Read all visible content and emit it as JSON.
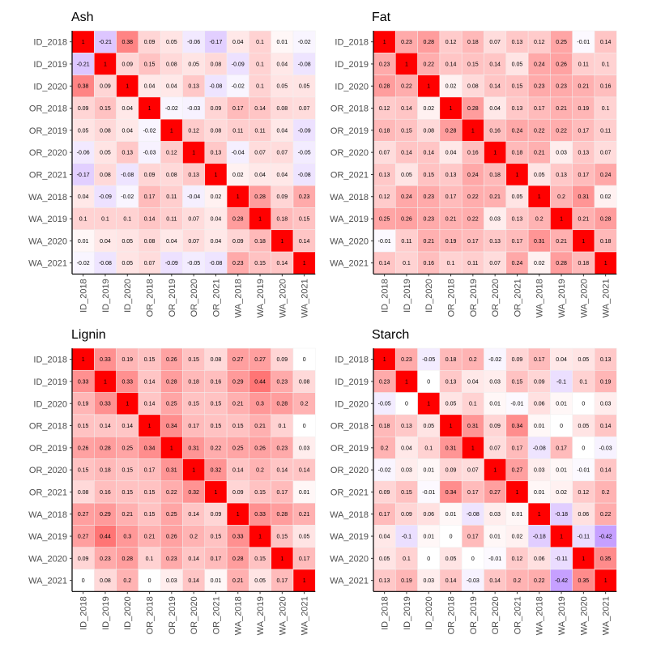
{
  "chart_data": [
    {
      "type": "heatmap",
      "title": "Ash",
      "x_categories": [
        "ID_2018",
        "ID_2019",
        "ID_2020",
        "OR_2018",
        "OR_2019",
        "OR_2020",
        "OR_2021",
        "WA_2018",
        "WA_2019",
        "WA_2020",
        "WA_2021"
      ],
      "y_categories": [
        "ID_2018",
        "ID_2019",
        "ID_2020",
        "OR_2018",
        "OR_2019",
        "OR_2020",
        "OR_2021",
        "WA_2018",
        "WA_2019",
        "WA_2020",
        "WA_2021"
      ],
      "values": [
        [
          "1",
          "-0.21",
          "0.38",
          "0.09",
          "0.05",
          "-0.06",
          "-0.17",
          "0.04",
          "0.1",
          "0.01",
          "-0.02"
        ],
        [
          "-0.21",
          "1",
          "0.09",
          "0.15",
          "0.08",
          "0.05",
          "0.08",
          "-0.09",
          "0.1",
          "0.04",
          "-0.08"
        ],
        [
          "0.38",
          "0.09",
          "1",
          "0.04",
          "0.04",
          "0.13",
          "-0.08",
          "-0.02",
          "0.1",
          "0.05",
          "0.05"
        ],
        [
          "0.09",
          "0.15",
          "0.04",
          "1",
          "-0.02",
          "-0.03",
          "0.09",
          "0.17",
          "0.14",
          "0.08",
          "0.07"
        ],
        [
          "0.05",
          "0.08",
          "0.04",
          "-0.02",
          "1",
          "0.12",
          "0.08",
          "0.11",
          "0.11",
          "0.04",
          "-0.09"
        ],
        [
          "-0.06",
          "0.05",
          "0.13",
          "-0.03",
          "0.12",
          "1",
          "0.13",
          "-0.04",
          "0.07",
          "0.07",
          "-0.05"
        ],
        [
          "-0.17",
          "0.08",
          "-0.08",
          "0.09",
          "0.08",
          "0.13",
          "1",
          "0.02",
          "0.04",
          "0.04",
          "-0.08"
        ],
        [
          "0.04",
          "-0.09",
          "-0.02",
          "0.17",
          "0.11",
          "-0.04",
          "0.02",
          "1",
          "0.28",
          "0.09",
          "0.23"
        ],
        [
          "0.1",
          "0.1",
          "0.1",
          "0.14",
          "0.11",
          "0.07",
          "0.04",
          "0.28",
          "1",
          "0.18",
          "0.15"
        ],
        [
          "0.01",
          "0.04",
          "0.05",
          "0.08",
          "0.04",
          "0.07",
          "0.04",
          "0.09",
          "0.18",
          "1",
          "0.14"
        ],
        [
          "-0.02",
          "-0.08",
          "0.05",
          "0.07",
          "-0.09",
          "-0.05",
          "-0.08",
          "0.23",
          "0.15",
          "0.14",
          "1"
        ]
      ]
    },
    {
      "type": "heatmap",
      "title": "Fat",
      "x_categories": [
        "ID_2018",
        "ID_2019",
        "ID_2020",
        "OR_2018",
        "OR_2019",
        "OR_2020",
        "OR_2021",
        "WA_2018",
        "WA_2019",
        "WA_2020",
        "WA_2021"
      ],
      "y_categories": [
        "ID_2018",
        "ID_2019",
        "ID_2020",
        "OR_2018",
        "OR_2019",
        "OR_2020",
        "OR_2021",
        "WA_2018",
        "WA_2019",
        "WA_2020",
        "WA_2021"
      ],
      "values": [
        [
          "1",
          "0.23",
          "0.28",
          "0.12",
          "0.18",
          "0.07",
          "0.13",
          "0.12",
          "0.25",
          "-0.01",
          "0.14"
        ],
        [
          "0.23",
          "1",
          "0.22",
          "0.14",
          "0.15",
          "0.14",
          "0.05",
          "0.24",
          "0.26",
          "0.11",
          "0.1"
        ],
        [
          "0.28",
          "0.22",
          "1",
          "0.02",
          "0.08",
          "0.14",
          "0.15",
          "0.23",
          "0.23",
          "0.21",
          "0.16"
        ],
        [
          "0.12",
          "0.14",
          "0.02",
          "1",
          "0.28",
          "0.04",
          "0.13",
          "0.17",
          "0.21",
          "0.19",
          "0.1"
        ],
        [
          "0.18",
          "0.15",
          "0.08",
          "0.28",
          "1",
          "0.16",
          "0.24",
          "0.22",
          "0.22",
          "0.17",
          "0.11"
        ],
        [
          "0.07",
          "0.14",
          "0.14",
          "0.04",
          "0.16",
          "1",
          "0.18",
          "0.21",
          "0.03",
          "0.13",
          "0.07"
        ],
        [
          "0.13",
          "0.05",
          "0.15",
          "0.13",
          "0.24",
          "0.18",
          "1",
          "0.05",
          "0.13",
          "0.17",
          "0.24"
        ],
        [
          "0.12",
          "0.24",
          "0.23",
          "0.17",
          "0.22",
          "0.21",
          "0.05",
          "1",
          "0.2",
          "0.31",
          "0.02"
        ],
        [
          "0.25",
          "0.26",
          "0.23",
          "0.21",
          "0.22",
          "0.03",
          "0.13",
          "0.2",
          "1",
          "0.21",
          "0.28"
        ],
        [
          "-0.01",
          "0.11",
          "0.21",
          "0.19",
          "0.17",
          "0.13",
          "0.17",
          "0.31",
          "0.21",
          "1",
          "0.18"
        ],
        [
          "0.14",
          "0.1",
          "0.16",
          "0.1",
          "0.11",
          "0.07",
          "0.24",
          "0.02",
          "0.28",
          "0.18",
          "1"
        ]
      ]
    },
    {
      "type": "heatmap",
      "title": "Lignin",
      "x_categories": [
        "ID_2018",
        "ID_2019",
        "ID_2020",
        "OR_2018",
        "OR_2019",
        "OR_2020",
        "OR_2021",
        "WA_2018",
        "WA_2019",
        "WA_2020",
        "WA_2021"
      ],
      "y_categories": [
        "ID_2018",
        "ID_2019",
        "ID_2020",
        "OR_2018",
        "OR_2019",
        "OR_2020",
        "OR_2021",
        "WA_2018",
        "WA_2019",
        "WA_2020",
        "WA_2021"
      ],
      "values": [
        [
          "1",
          "0.33",
          "0.19",
          "0.15",
          "0.26",
          "0.15",
          "0.08",
          "0.27",
          "0.27",
          "0.09",
          "0"
        ],
        [
          "0.33",
          "1",
          "0.33",
          "0.14",
          "0.28",
          "0.18",
          "0.16",
          "0.29",
          "0.44",
          "0.23",
          "0.08"
        ],
        [
          "0.19",
          "0.33",
          "1",
          "0.14",
          "0.25",
          "0.15",
          "0.15",
          "0.21",
          "0.3",
          "0.28",
          "0.2"
        ],
        [
          "0.15",
          "0.14",
          "0.14",
          "1",
          "0.34",
          "0.17",
          "0.15",
          "0.15",
          "0.21",
          "0.1",
          "0"
        ],
        [
          "0.26",
          "0.28",
          "0.25",
          "0.34",
          "1",
          "0.31",
          "0.22",
          "0.25",
          "0.26",
          "0.23",
          "0.03"
        ],
        [
          "0.15",
          "0.18",
          "0.15",
          "0.17",
          "0.31",
          "1",
          "0.32",
          "0.14",
          "0.2",
          "0.14",
          "0.14"
        ],
        [
          "0.08",
          "0.16",
          "0.15",
          "0.15",
          "0.22",
          "0.32",
          "1",
          "0.09",
          "0.15",
          "0.17",
          "0.01"
        ],
        [
          "0.27",
          "0.29",
          "0.21",
          "0.15",
          "0.25",
          "0.14",
          "0.09",
          "1",
          "0.33",
          "0.28",
          "0.21"
        ],
        [
          "0.27",
          "0.44",
          "0.3",
          "0.21",
          "0.26",
          "0.2",
          "0.15",
          "0.33",
          "1",
          "0.15",
          "0.05"
        ],
        [
          "0.09",
          "0.23",
          "0.28",
          "0.1",
          "0.23",
          "0.14",
          "0.17",
          "0.28",
          "0.15",
          "1",
          "0.17"
        ],
        [
          "0",
          "0.08",
          "0.2",
          "0",
          "0.03",
          "0.14",
          "0.01",
          "0.21",
          "0.05",
          "0.17",
          "1"
        ]
      ]
    },
    {
      "type": "heatmap",
      "title": "Starch",
      "x_categories": [
        "ID_2018",
        "ID_2019",
        "ID_2020",
        "OR_2018",
        "OR_2019",
        "OR_2020",
        "OR_2021",
        "WA_2018",
        "WA_2019",
        "WA_2020",
        "WA_2021"
      ],
      "y_categories": [
        "ID_2018",
        "ID_2019",
        "ID_2020",
        "OR_2018",
        "OR_2019",
        "OR_2020",
        "OR_2021",
        "WA_2018",
        "WA_2019",
        "WA_2020",
        "WA_2021"
      ],
      "values": [
        [
          "1",
          "0.23",
          "-0.05",
          "0.18",
          "0.2",
          "-0.02",
          "0.09",
          "0.17",
          "0.04",
          "0.05",
          "0.13"
        ],
        [
          "0.23",
          "1",
          "0",
          "0.13",
          "0.04",
          "0.03",
          "0.15",
          "0.09",
          "-0.1",
          "0.1",
          "0.19"
        ],
        [
          "-0.05",
          "0",
          "1",
          "0.05",
          "0.1",
          "0.01",
          "-0.01",
          "0.06",
          "0.01",
          "0",
          "0.03"
        ],
        [
          "0.18",
          "0.13",
          "0.05",
          "1",
          "0.31",
          "0.09",
          "0.34",
          "0.01",
          "0",
          "0.05",
          "0.14"
        ],
        [
          "0.2",
          "0.04",
          "0.1",
          "0.31",
          "1",
          "0.07",
          "0.17",
          "-0.08",
          "0.17",
          "0",
          "-0.03"
        ],
        [
          "-0.02",
          "0.03",
          "0.01",
          "0.09",
          "0.07",
          "1",
          "0.27",
          "0.03",
          "0.01",
          "-0.01",
          "0.14"
        ],
        [
          "0.09",
          "0.15",
          "-0.01",
          "0.34",
          "0.17",
          "0.27",
          "1",
          "0.01",
          "0.02",
          "0.12",
          "0.2"
        ],
        [
          "0.17",
          "0.09",
          "0.06",
          "0.01",
          "-0.08",
          "0.03",
          "0.01",
          "1",
          "-0.18",
          "0.06",
          "0.22"
        ],
        [
          "0.04",
          "-0.1",
          "0.01",
          "0",
          "0.17",
          "0.01",
          "0.02",
          "-0.18",
          "1",
          "-0.11",
          "-0.42"
        ],
        [
          "0.05",
          "0.1",
          "0",
          "0.05",
          "0",
          "-0.01",
          "0.12",
          "0.06",
          "-0.11",
          "1",
          "0.35"
        ],
        [
          "0.13",
          "0.19",
          "0.03",
          "0.14",
          "-0.03",
          "0.14",
          "0.2",
          "0.22",
          "-0.42",
          "0.35",
          "1"
        ]
      ]
    }
  ],
  "colors": {
    "high": "#ff0000",
    "low": "#9b59ff",
    "mid": "#ffffff",
    "axis": "#000000",
    "tick_text": "#4d4d4d",
    "grid_line": "#f0f0f0"
  }
}
